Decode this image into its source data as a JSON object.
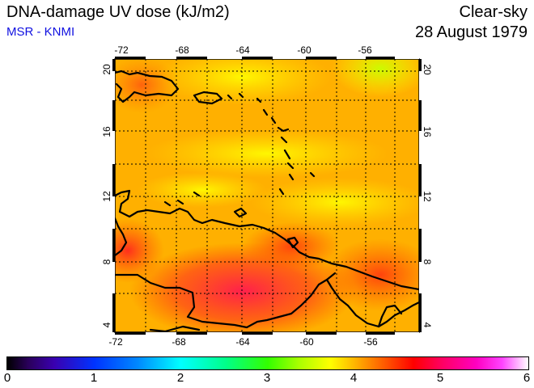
{
  "header": {
    "title": "DNA-damage UV dose (kJ/m2)",
    "source": "MSR - KNMI",
    "sky_condition": "Clear-sky",
    "date": "28 August 1979"
  },
  "map": {
    "lon_ticks": [
      "-72",
      "-68",
      "-64",
      "-60",
      "-56"
    ],
    "lat_ticks": [
      "20",
      "16",
      "12",
      "8",
      "4"
    ],
    "lon_range": [
      -72.3,
      -52.3
    ],
    "lat_range": [
      3.7,
      20.6
    ],
    "field_min_color": "#ffff00",
    "field_mid_color": "#ffa000",
    "field_max_color": "#ff2040"
  },
  "colorbar": {
    "labels": [
      "0",
      "1",
      "2",
      "3",
      "4",
      "5",
      "6"
    ],
    "range": [
      0,
      6
    ]
  }
}
